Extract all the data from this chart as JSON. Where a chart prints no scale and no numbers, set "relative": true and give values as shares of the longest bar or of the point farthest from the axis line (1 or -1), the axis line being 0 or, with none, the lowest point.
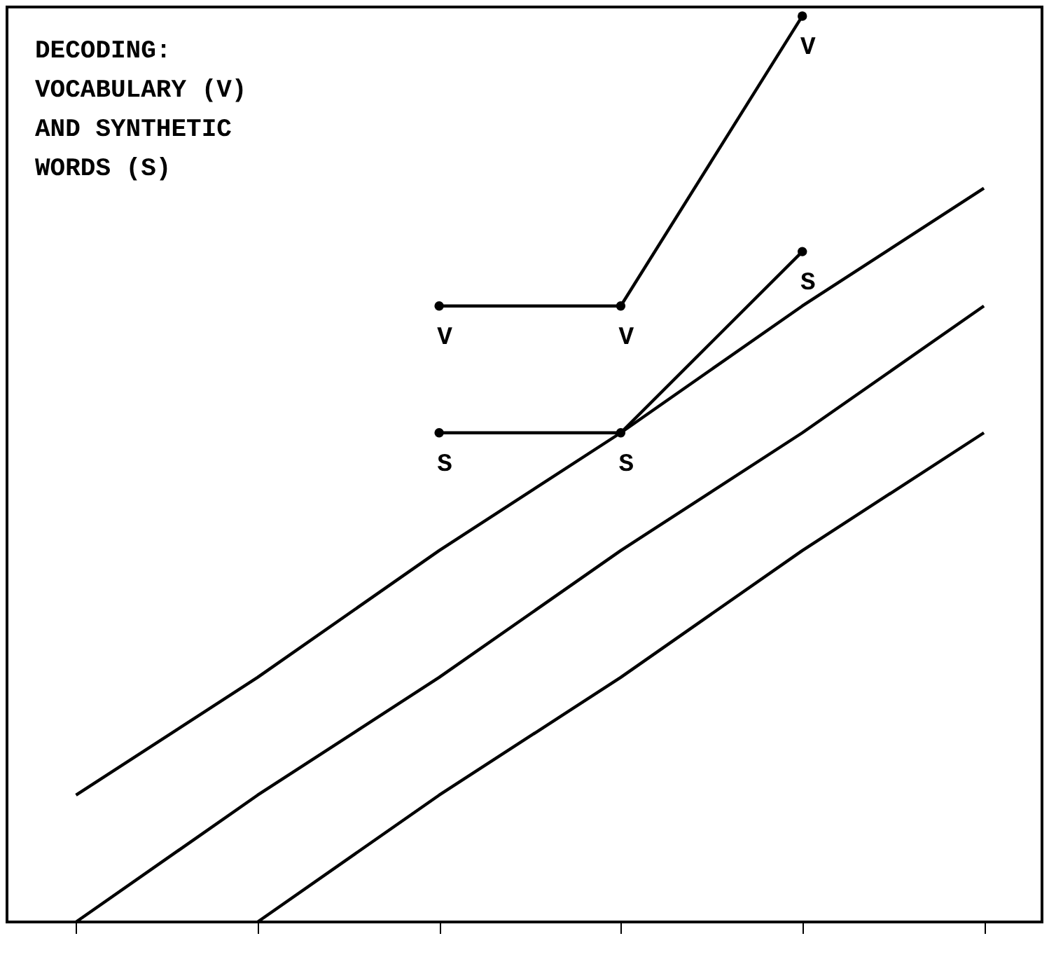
{
  "chart_data": {
    "type": "line",
    "title": "DECODING:\nVOCABULARY (V)\nAND SYNTHETIC\nWORDS (S)",
    "relative": true,
    "categories": [
      null,
      null,
      null,
      null,
      null,
      null
    ],
    "legend": false,
    "grid": false,
    "line_style": "solid",
    "series": [
      {
        "color": "#000000",
        "marker": "none",
        "values": [
          0.14,
          0.27,
          0.41,
          0.54,
          0.68,
          0.81
        ]
      },
      {
        "color": "#000000",
        "marker": "none",
        "values": [
          0,
          0.14,
          0.27,
          0.41,
          0.54,
          0.68
        ]
      },
      {
        "color": "#000000",
        "marker": "none",
        "values": [
          null,
          0,
          0.14,
          0.27,
          0.41,
          0.54
        ]
      },
      {
        "name": "V",
        "color": "#000000",
        "marker": "circle",
        "values": [
          null,
          null,
          0.68,
          0.68,
          1,
          null
        ]
      },
      {
        "name": "S",
        "color": "#000000",
        "marker": "circle",
        "values": [
          null,
          null,
          0.54,
          0.54,
          0.74,
          null
        ]
      }
    ]
  }
}
